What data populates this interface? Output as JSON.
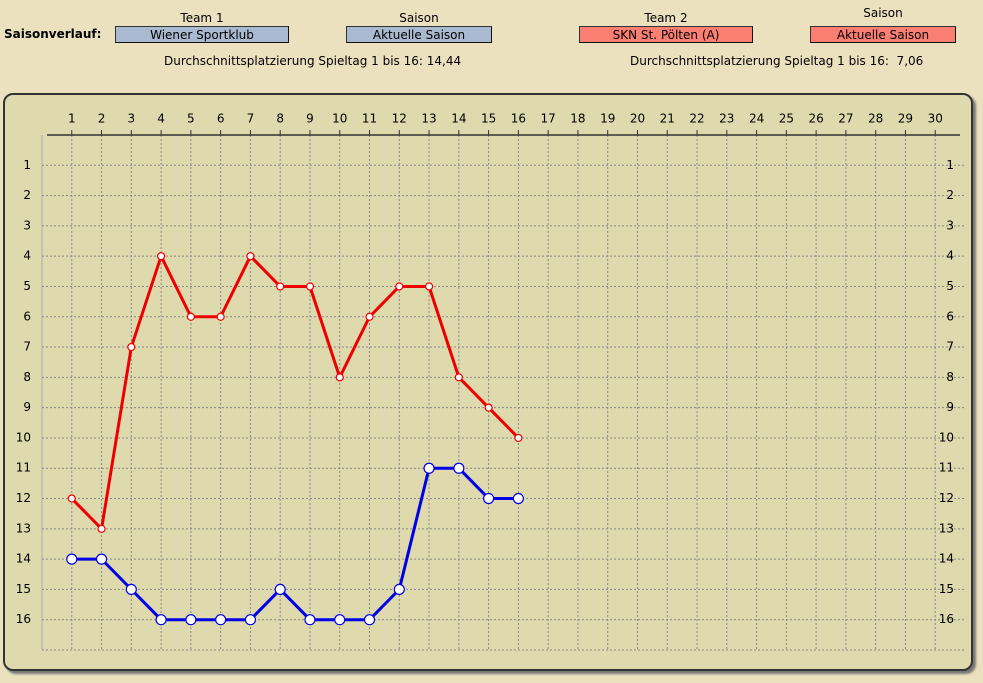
{
  "header": {
    "label": "Saisonverlauf:",
    "team1": {
      "caption": "Team 1",
      "value": "Wiener Sportklub"
    },
    "season1": {
      "caption": "Saison",
      "value": "Aktuelle Saison"
    },
    "team2": {
      "caption": "Team 2",
      "value": "SKN St. Pölten (A)"
    },
    "season2": {
      "caption": "Saison",
      "value": "Aktuelle Saison"
    },
    "average1": "Durchschnittsplatzierung Spieltag 1 bis 16: 14,44",
    "average2": "Durchschnittsplatzierung Spieltag 1 bis 16:  7,06"
  },
  "chart_data": {
    "type": "line",
    "x": [
      1,
      2,
      3,
      4,
      5,
      6,
      7,
      8,
      9,
      10,
      11,
      12,
      13,
      14,
      15,
      16
    ],
    "series": [
      {
        "color": "#0000e6",
        "values": [
          14,
          14,
          15,
          16,
          16,
          16,
          16,
          15,
          16,
          16,
          16,
          15,
          11,
          11,
          12,
          12
        ]
      },
      {
        "color": "#ee0000",
        "values": [
          12,
          13,
          7,
          4,
          6,
          6,
          4,
          5,
          5,
          8,
          6,
          5,
          5,
          8,
          9,
          10
        ]
      }
    ],
    "xlim": [
      0,
      31
    ],
    "ylim": [
      0,
      17
    ],
    "y_inverted": true,
    "xticks": [
      1,
      2,
      3,
      4,
      5,
      6,
      7,
      8,
      9,
      10,
      11,
      12,
      13,
      14,
      15,
      16,
      17,
      18,
      19,
      20,
      21,
      22,
      23,
      24,
      25,
      26,
      27,
      28,
      29,
      30
    ],
    "yticks": [
      1,
      2,
      3,
      4,
      5,
      6,
      7,
      8,
      9,
      10,
      11,
      12,
      13,
      14,
      15,
      16
    ],
    "grid": true
  }
}
